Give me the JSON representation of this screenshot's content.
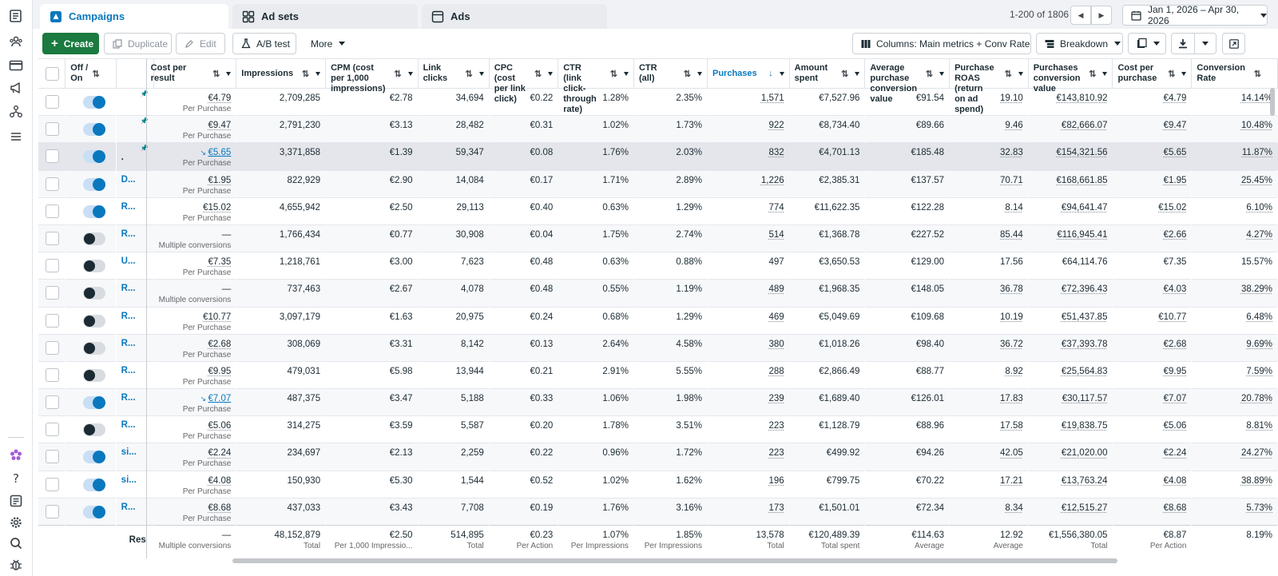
{
  "rail": {
    "icons": [
      "book-icon",
      "people-icon",
      "card-icon",
      "megaphone-icon",
      "hierarchy-icon",
      "menu-icon"
    ],
    "bottom_icons": [
      "flower-icon",
      "help-icon",
      "reports-icon",
      "settings-icon",
      "search-icon",
      "bug-icon"
    ]
  },
  "tabs": [
    {
      "label": "Campaigns",
      "icon": "campaign-icon"
    },
    {
      "label": "Ad sets",
      "icon": "grid-icon"
    },
    {
      "label": "Ads",
      "icon": "ad-icon"
    }
  ],
  "pager": {
    "text": "1-200 of 1806"
  },
  "date_range": "Jan 1, 2026 – Apr 30, 2026",
  "toolbar": {
    "create": "Create",
    "duplicate": "Duplicate",
    "edit": "Edit",
    "ab_test": "A/B test",
    "more": "More",
    "columns": "Columns: Main metrics + Conv Rate",
    "breakdown": "Breakdown"
  },
  "headers": {
    "off_on": "Off / On",
    "name": "",
    "cost_per_result": "Cost per result",
    "impressions": "Impressions",
    "cpm": "CPM (cost per 1,000 impressions)",
    "link_clicks": "Link clicks",
    "cpc": "CPC (cost per link click)",
    "ctr_link": "CTR (link click-through rate)",
    "ctr_all": "CTR (all)",
    "purchases": "Purchases",
    "amount_spent": "Amount spent",
    "avg_purchase": "Average purchase conversion value",
    "roas": "Purchase ROAS (return on ad spend)",
    "purchases_conv": "Purchases conversion value",
    "cost_per_purchase": "Cost per purchase",
    "conv_rate": "Conversion Rate"
  },
  "rows": [
    {
      "on": true,
      "pin": true,
      "name": "",
      "cpr": "€4.79",
      "cpr_sub": "Per Purchase",
      "cpr_link": false,
      "impr": "2,709,285",
      "cpm": "€2.78",
      "clicks": "34,694",
      "cpc": "€0.22",
      "ctr_link": "1.28%",
      "ctr_all": "2.35%",
      "purch": "1,571",
      "spent": "€7,527.96",
      "avg": "€91.54",
      "roas": "19.10",
      "conv": "€143,810.92",
      "cpp": "€4.79",
      "rate": "14.14%"
    },
    {
      "on": true,
      "pin": true,
      "name": "",
      "cpr": "€9.47",
      "cpr_sub": "Per Purchase",
      "cpr_link": false,
      "impr": "2,791,230",
      "cpm": "€3.13",
      "clicks": "28,482",
      "cpc": "€0.31",
      "ctr_link": "1.02%",
      "ctr_all": "1.73%",
      "purch": "922",
      "spent": "€8,734.40",
      "avg": "€89.66",
      "roas": "9.46",
      "conv": "€82,666.07",
      "cpp": "€9.47",
      "rate": "10.48%"
    },
    {
      "on": true,
      "pin": true,
      "name": ".",
      "cpr": "€5.65",
      "cpr_sub": "Per Purchase",
      "cpr_link": true,
      "impr": "3,371,858",
      "cpm": "€1.39",
      "clicks": "59,347",
      "cpc": "€0.08",
      "ctr_link": "1.76%",
      "ctr_all": "2.03%",
      "purch": "832",
      "spent": "€4,701.13",
      "avg": "€185.48",
      "roas": "32.83",
      "conv": "€154,321.56",
      "cpp": "€5.65",
      "rate": "11.87%",
      "selected": true
    },
    {
      "on": true,
      "pin": false,
      "name": "D...",
      "cpr": "€1.95",
      "cpr_sub": "Per Purchase",
      "cpr_link": false,
      "impr": "822,929",
      "cpm": "€2.90",
      "clicks": "14,084",
      "cpc": "€0.17",
      "ctr_link": "1.71%",
      "ctr_all": "2.89%",
      "purch": "1,226",
      "spent": "€2,385.31",
      "avg": "€137.57",
      "roas": "70.71",
      "conv": "€168,661.85",
      "cpp": "€1.95",
      "rate": "25.45%"
    },
    {
      "on": true,
      "pin": false,
      "name": "R...",
      "cpr": "€15.02",
      "cpr_sub": "Per Purchase",
      "cpr_link": false,
      "impr": "4,655,942",
      "cpm": "€2.50",
      "clicks": "29,113",
      "cpc": "€0.40",
      "ctr_link": "0.63%",
      "ctr_all": "1.29%",
      "purch": "774",
      "spent": "€11,622.35",
      "avg": "€122.28",
      "roas": "8.14",
      "conv": "€94,641.47",
      "cpp": "€15.02",
      "rate": "6.10%"
    },
    {
      "on": false,
      "pin": false,
      "name": "R...",
      "cpr": "—",
      "cpr_sub": "Multiple conversions",
      "cpr_link": false,
      "impr": "1,766,434",
      "cpm": "€0.77",
      "clicks": "30,908",
      "cpc": "€0.04",
      "ctr_link": "1.75%",
      "ctr_all": "2.74%",
      "purch": "514",
      "spent": "€1,368.78",
      "avg": "€227.52",
      "roas": "85.44",
      "conv": "€116,945.41",
      "cpp": "€2.66",
      "rate": "4.27%"
    },
    {
      "on": false,
      "pin": false,
      "name": "U...",
      "cpr": "€7.35",
      "cpr_sub": "Per Purchase",
      "cpr_link": false,
      "impr": "1,218,761",
      "cpm": "€3.00",
      "clicks": "7,623",
      "cpc": "€0.48",
      "ctr_link": "0.63%",
      "ctr_all": "0.88%",
      "purch": "497",
      "spent": "€3,650.53",
      "avg": "€129.00",
      "roas": "17.56",
      "conv": "€64,114.76",
      "cpp": "€7.35",
      "rate": "15.57%",
      "plain": true
    },
    {
      "on": false,
      "pin": false,
      "name": "R...",
      "cpr": "—",
      "cpr_sub": "Multiple conversions",
      "cpr_link": false,
      "impr": "737,463",
      "cpm": "€2.67",
      "clicks": "4,078",
      "cpc": "€0.48",
      "ctr_link": "0.55%",
      "ctr_all": "1.19%",
      "purch": "489",
      "spent": "€1,968.35",
      "avg": "€148.05",
      "roas": "36.78",
      "conv": "€72,396.43",
      "cpp": "€4.03",
      "rate": "38.29%"
    },
    {
      "on": false,
      "pin": false,
      "name": "R...",
      "cpr": "€10.77",
      "cpr_sub": "Per Purchase",
      "cpr_link": false,
      "impr": "3,097,179",
      "cpm": "€1.63",
      "clicks": "20,975",
      "cpc": "€0.24",
      "ctr_link": "0.68%",
      "ctr_all": "1.29%",
      "purch": "469",
      "spent": "€5,049.69",
      "avg": "€109.68",
      "roas": "10.19",
      "conv": "€51,437.85",
      "cpp": "€10.77",
      "rate": "6.48%"
    },
    {
      "on": false,
      "pin": false,
      "name": "R...",
      "cpr": "€2.68",
      "cpr_sub": "Per Purchase",
      "cpr_link": false,
      "impr": "308,069",
      "cpm": "€3.31",
      "clicks": "8,142",
      "cpc": "€0.13",
      "ctr_link": "2.64%",
      "ctr_all": "4.58%",
      "purch": "380",
      "spent": "€1,018.26",
      "avg": "€98.40",
      "roas": "36.72",
      "conv": "€37,393.78",
      "cpp": "€2.68",
      "rate": "9.69%"
    },
    {
      "on": false,
      "pin": false,
      "name": "R...",
      "cpr": "€9.95",
      "cpr_sub": "Per Purchase",
      "cpr_link": false,
      "impr": "479,031",
      "cpm": "€5.98",
      "clicks": "13,944",
      "cpc": "€0.21",
      "ctr_link": "2.91%",
      "ctr_all": "5.55%",
      "purch": "288",
      "spent": "€2,866.49",
      "avg": "€88.77",
      "roas": "8.92",
      "conv": "€25,564.83",
      "cpp": "€9.95",
      "rate": "7.59%"
    },
    {
      "on": true,
      "pin": false,
      "name": "R...",
      "cpr": "€7.07",
      "cpr_sub": "Per Purchase",
      "cpr_link": true,
      "impr": "487,375",
      "cpm": "€3.47",
      "clicks": "5,188",
      "cpc": "€0.33",
      "ctr_link": "1.06%",
      "ctr_all": "1.98%",
      "purch": "239",
      "spent": "€1,689.40",
      "avg": "€126.01",
      "roas": "17.83",
      "conv": "€30,117.57",
      "cpp": "€7.07",
      "rate": "20.78%"
    },
    {
      "on": false,
      "pin": false,
      "name": "R...",
      "cpr": "€5.06",
      "cpr_sub": "Per Purchase",
      "cpr_link": false,
      "impr": "314,275",
      "cpm": "€3.59",
      "clicks": "5,587",
      "cpc": "€0.20",
      "ctr_link": "1.78%",
      "ctr_all": "3.51%",
      "purch": "223",
      "spent": "€1,128.79",
      "avg": "€88.96",
      "roas": "17.58",
      "conv": "€19,838.75",
      "cpp": "€5.06",
      "rate": "8.81%"
    },
    {
      "on": true,
      "pin": false,
      "name": "si...",
      "cpr": "€2.24",
      "cpr_sub": "Per Purchase",
      "cpr_link": false,
      "impr": "234,697",
      "cpm": "€2.13",
      "clicks": "2,259",
      "cpc": "€0.22",
      "ctr_link": "0.96%",
      "ctr_all": "1.72%",
      "purch": "223",
      "spent": "€499.92",
      "avg": "€94.26",
      "roas": "42.05",
      "conv": "€21,020.00",
      "cpp": "€2.24",
      "rate": "24.27%"
    },
    {
      "on": true,
      "pin": false,
      "name": "si...",
      "cpr": "€4.08",
      "cpr_sub": "Per Purchase",
      "cpr_link": false,
      "impr": "150,930",
      "cpm": "€5.30",
      "clicks": "1,544",
      "cpc": "€0.52",
      "ctr_link": "1.02%",
      "ctr_all": "1.62%",
      "purch": "196",
      "spent": "€799.75",
      "avg": "€70.22",
      "roas": "17.21",
      "conv": "€13,763.24",
      "cpp": "€4.08",
      "rate": "38.89%"
    },
    {
      "on": true,
      "pin": false,
      "name": "R...",
      "cpr": "€8.68",
      "cpr_sub": "Per Purchase",
      "cpr_link": false,
      "impr": "437,033",
      "cpm": "€3.43",
      "clicks": "7,708",
      "cpc": "€0.19",
      "ctr_link": "1.76%",
      "ctr_all": "3.16%",
      "purch": "173",
      "spent": "€1,501.01",
      "avg": "€72.34",
      "roas": "8.34",
      "conv": "€12,515.27",
      "cpp": "€8.68",
      "rate": "5.73%"
    }
  ],
  "totals": {
    "label": "Res",
    "cpr": "—",
    "cpr_sub": "Multiple conversions",
    "impr": "48,152,879",
    "impr_sub": "Total",
    "cpm": "€2.50",
    "cpm_sub": "Per 1,000 Impressio...",
    "clicks": "514,895",
    "clicks_sub": "Total",
    "cpc": "€0.23",
    "cpc_sub": "Per Action",
    "ctr_link": "1.07%",
    "ctr_link_sub": "Per Impressions",
    "ctr_all": "1.85%",
    "ctr_all_sub": "Per Impressions",
    "purch": "13,578",
    "purch_sub": "Total",
    "spent": "€120,489.39",
    "spent_sub": "Total spent",
    "avg": "€114.63",
    "avg_sub": "Average",
    "roas": "12.92",
    "roas_sub": "Average",
    "conv": "€1,556,380.05",
    "conv_sub": "Total",
    "cpp": "€8.87",
    "cpp_sub": "Per Action",
    "rate": "8.19%"
  }
}
